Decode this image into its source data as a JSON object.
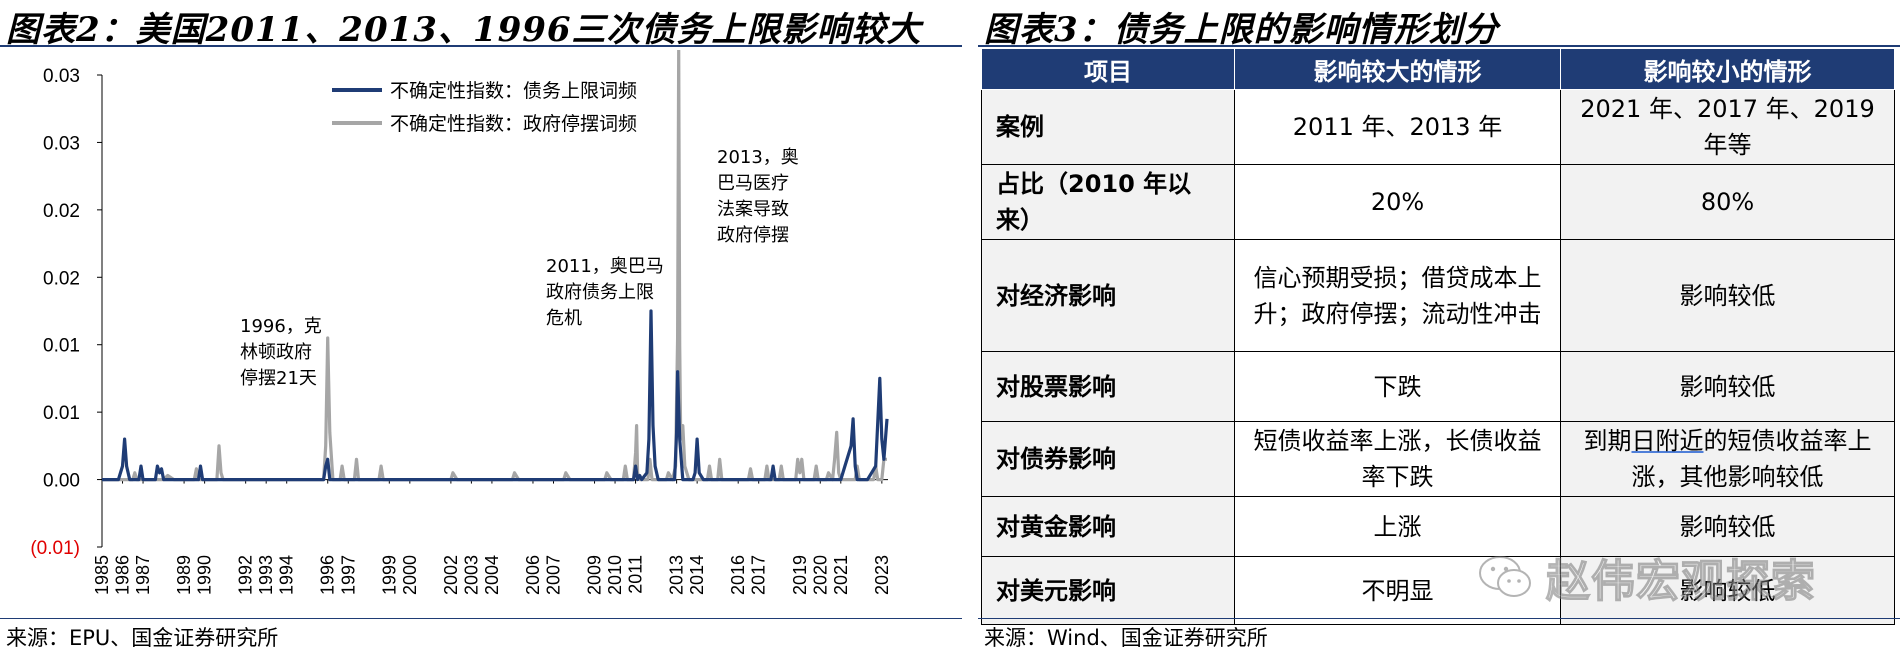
{
  "left": {
    "title": "图表2：美国2011、2013、1996三次债务上限影响较大",
    "source": "来源：EPU、国金证券研究所"
  },
  "right": {
    "title": "图表3：债务上限的影响情形划分",
    "source": "来源：Wind、国金证券研究所",
    "table": {
      "headers": [
        "项目",
        "影响较大的情形",
        "影响较小的情形"
      ],
      "rows": [
        {
          "item": "案例",
          "large": "2011 年、2013 年",
          "small": "2021 年、2017 年、2019 年等"
        },
        {
          "item": "占比（2010 年以来）",
          "large": "20%",
          "small": "80%"
        },
        {
          "item": "对经济影响",
          "large": "信心预期受损；借贷成本上升；政府停摆；流动性冲击",
          "small": "影响较低"
        },
        {
          "item": "对股票影响",
          "large": "下跌",
          "small": "影响较低"
        },
        {
          "item": "对债券影响",
          "large": "短债收益率上涨，长债收益率下跌",
          "small_a": "到期",
          "small_b": "日附近",
          "small_c": "的短债收益率上涨，其他影响较低"
        },
        {
          "item": "对黄金影响",
          "large": "上涨",
          "small": "影响较低"
        },
        {
          "item": "对美元影响",
          "large": "不明显",
          "small": "影响较低"
        }
      ]
    }
  },
  "watermark": {
    "text": "赵伟宏观探索",
    "icon": "wechat-icon"
  },
  "chart_data": {
    "type": "line",
    "title": "",
    "xlabel": "",
    "ylabel": "",
    "ylim": [
      -0.005,
      0.03
    ],
    "y_ticks": [
      0.03,
      0.025,
      0.02,
      0.015,
      0.01,
      0.005,
      0.0,
      -0.005
    ],
    "y_tick_labels": [
      "0.03",
      "0.03",
      "0.02",
      "0.02",
      "0.01",
      "0.01",
      "0.00",
      "(0.01)"
    ],
    "x_ticks": [
      "1985",
      "1986",
      "1987",
      "1989",
      "1990",
      "1992",
      "1993",
      "1994",
      "1996",
      "1997",
      "1999",
      "2000",
      "2002",
      "2003",
      "2004",
      "2006",
      "2007",
      "2009",
      "2010",
      "2011",
      "2013",
      "2014",
      "2016",
      "2017",
      "2019",
      "2020",
      "2021",
      "2023"
    ],
    "xlim": [
      1985.0,
      2023.3
    ],
    "legend": "top-center",
    "grid": false,
    "series": [
      {
        "name": "不确定性指数：债务上限词频",
        "color": "#1f3c75",
        "points": [
          [
            1985.0,
            0.0
          ],
          [
            1985.8,
            0.0
          ],
          [
            1986.0,
            0.001
          ],
          [
            1986.1,
            0.003
          ],
          [
            1986.2,
            0.001
          ],
          [
            1986.35,
            0.0
          ],
          [
            1986.8,
            0.0
          ],
          [
            1986.9,
            0.001
          ],
          [
            1987.0,
            0.0
          ],
          [
            1987.6,
            0.0
          ],
          [
            1987.7,
            0.001
          ],
          [
            1987.8,
            0.0005
          ],
          [
            1987.9,
            0.0008
          ],
          [
            1988.0,
            0.0
          ],
          [
            1989.7,
            0.0
          ],
          [
            1989.8,
            0.001
          ],
          [
            1989.9,
            0.0
          ],
          [
            1993.0,
            0.0
          ],
          [
            1995.8,
            0.0
          ],
          [
            1995.9,
            0.001
          ],
          [
            1996.0,
            0.0015
          ],
          [
            1996.1,
            0.0
          ],
          [
            2010.9,
            0.0
          ],
          [
            2011.0,
            0.001
          ],
          [
            2011.1,
            0.0
          ],
          [
            2011.2,
            0.0003
          ],
          [
            2011.3,
            0.0
          ],
          [
            2011.55,
            0.0005
          ],
          [
            2011.65,
            0.003
          ],
          [
            2011.75,
            0.0125
          ],
          [
            2011.85,
            0.004
          ],
          [
            2011.95,
            0.001
          ],
          [
            2012.1,
            0.0
          ],
          [
            2012.9,
            0.0
          ],
          [
            2013.0,
            0.0035
          ],
          [
            2013.05,
            0.008
          ],
          [
            2013.15,
            0.003
          ],
          [
            2013.3,
            0.0
          ],
          [
            2013.8,
            0.0
          ],
          [
            2013.9,
            0.0005
          ],
          [
            2014.0,
            0.003
          ],
          [
            2014.1,
            0.0005
          ],
          [
            2014.3,
            0.0
          ],
          [
            2017.6,
            0.0
          ],
          [
            2017.7,
            0.001
          ],
          [
            2017.8,
            0.0
          ],
          [
            2018.0,
            0.0
          ],
          [
            2021.0,
            0.0
          ],
          [
            2021.2,
            0.001
          ],
          [
            2021.5,
            0.0025
          ],
          [
            2021.6,
            0.0045
          ],
          [
            2021.7,
            0.001
          ],
          [
            2021.8,
            0.0
          ],
          [
            2022.3,
            0.0
          ],
          [
            2022.5,
            0.0005
          ],
          [
            2022.7,
            0.001
          ],
          [
            2022.9,
            0.0075
          ],
          [
            2023.0,
            0.003
          ],
          [
            2023.1,
            0.0015
          ],
          [
            2023.25,
            0.0045
          ]
        ]
      },
      {
        "name": "不确定性指数：政府停摆词频",
        "color": "#a6a6a6",
        "points": [
          [
            1985.0,
            0.0
          ],
          [
            1986.5,
            0.0
          ],
          [
            1986.6,
            0.0005
          ],
          [
            1986.7,
            0.0
          ],
          [
            1988.0,
            0.0
          ],
          [
            1988.2,
            0.0003
          ],
          [
            1988.5,
            0.0
          ],
          [
            1989.5,
            0.0
          ],
          [
            1989.6,
            0.0008
          ],
          [
            1989.7,
            0.0
          ],
          [
            1990.6,
            0.0
          ],
          [
            1990.7,
            0.0025
          ],
          [
            1990.8,
            0.0005
          ],
          [
            1990.9,
            0.0
          ],
          [
            1995.8,
            0.0
          ],
          [
            1995.9,
            0.0025
          ],
          [
            1996.0,
            0.0105
          ],
          [
            1996.1,
            0.0035
          ],
          [
            1996.25,
            0.0
          ],
          [
            1996.6,
            0.0
          ],
          [
            1996.7,
            0.001
          ],
          [
            1996.8,
            0.0
          ],
          [
            1997.3,
            0.0
          ],
          [
            1997.4,
            0.0015
          ],
          [
            1997.5,
            0.0
          ],
          [
            1998.5,
            0.0
          ],
          [
            1998.6,
            0.001
          ],
          [
            1998.7,
            0.0
          ],
          [
            2002.0,
            0.0
          ],
          [
            2002.1,
            0.0005
          ],
          [
            2002.3,
            0.0
          ],
          [
            2005.0,
            0.0
          ],
          [
            2005.1,
            0.0005
          ],
          [
            2005.3,
            0.0
          ],
          [
            2007.5,
            0.0
          ],
          [
            2007.6,
            0.0005
          ],
          [
            2007.8,
            0.0
          ],
          [
            2009.5,
            0.0
          ],
          [
            2009.6,
            0.0005
          ],
          [
            2009.8,
            0.0
          ],
          [
            2010.4,
            0.0
          ],
          [
            2010.5,
            0.001
          ],
          [
            2010.6,
            0.0
          ],
          [
            2010.9,
            0.0
          ],
          [
            2011.0,
            0.002
          ],
          [
            2011.05,
            0.004
          ],
          [
            2011.1,
            0.0005
          ],
          [
            2011.2,
            0.0
          ],
          [
            2011.6,
            0.0
          ],
          [
            2011.7,
            0.0015
          ],
          [
            2011.8,
            0.0
          ],
          [
            2012.5,
            0.0
          ],
          [
            2012.6,
            0.0005
          ],
          [
            2012.8,
            0.0
          ],
          [
            2012.95,
            0.001
          ],
          [
            2013.0,
            0.006
          ],
          [
            2013.05,
            0.0105
          ],
          [
            2013.1,
            0.032
          ],
          [
            2013.15,
            0.01
          ],
          [
            2013.2,
            0.003
          ],
          [
            2013.3,
            0.004
          ],
          [
            2013.4,
            0.001
          ],
          [
            2013.6,
            0.0
          ],
          [
            2014.5,
            0.0
          ],
          [
            2014.6,
            0.001
          ],
          [
            2014.7,
            0.0
          ],
          [
            2015.0,
            0.0
          ],
          [
            2015.1,
            0.0015
          ],
          [
            2015.2,
            0.0
          ],
          [
            2016.5,
            0.0
          ],
          [
            2016.6,
            0.0008
          ],
          [
            2016.7,
            0.0
          ],
          [
            2017.3,
            0.0
          ],
          [
            2017.4,
            0.001
          ],
          [
            2017.5,
            0.0
          ],
          [
            2018.0,
            0.0
          ],
          [
            2018.1,
            0.001
          ],
          [
            2018.2,
            0.0
          ],
          [
            2018.8,
            0.0
          ],
          [
            2018.9,
            0.0015
          ],
          [
            2019.0,
            0.0005
          ],
          [
            2019.1,
            0.0015
          ],
          [
            2019.2,
            0.0
          ],
          [
            2019.7,
            0.0
          ],
          [
            2019.8,
            0.001
          ],
          [
            2019.9,
            0.0
          ],
          [
            2020.3,
            0.0
          ],
          [
            2020.4,
            0.0005
          ],
          [
            2020.6,
            0.0
          ],
          [
            2020.7,
            0.0015
          ],
          [
            2020.8,
            0.0035
          ],
          [
            2020.9,
            0.0005
          ],
          [
            2021.0,
            0.0
          ],
          [
            2021.7,
            0.0
          ],
          [
            2021.8,
            0.001
          ],
          [
            2021.9,
            0.0
          ],
          [
            2022.6,
            0.0
          ],
          [
            2022.7,
            0.001
          ],
          [
            2022.8,
            0.0
          ],
          [
            2023.0,
            0.0
          ],
          [
            2023.1,
            0.0015
          ],
          [
            2023.25,
            0.0015
          ]
        ]
      }
    ],
    "annotations": [
      {
        "x": 1996.0,
        "y": 0.0105,
        "lines": [
          "1996，克",
          "林顿政府",
          "停摆21天"
        ]
      },
      {
        "x": 2011.7,
        "y": 0.0125,
        "lines": [
          "2011，奥巴马",
          "政府债务上限",
          "危机"
        ]
      },
      {
        "x": 2013.1,
        "y": 0.032,
        "lines": [
          "2013，奥",
          "巴马医疗",
          "法案导致",
          "政府停摆"
        ]
      }
    ]
  }
}
